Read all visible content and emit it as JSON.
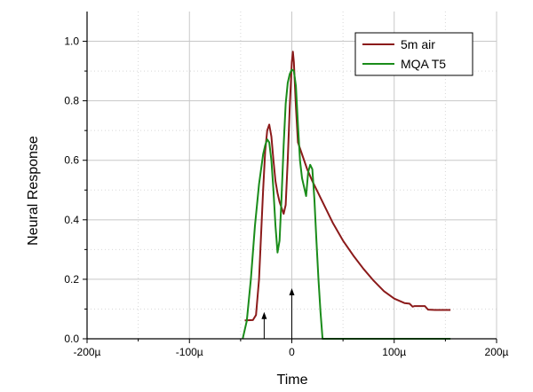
{
  "chart_data": {
    "type": "line",
    "xlabel": "Time",
    "ylabel": "Neural Response",
    "xlim": [
      -0.0002,
      0.0002
    ],
    "ylim": [
      0,
      1.1
    ],
    "x_ticks": [
      -0.0002,
      -0.0001,
      0,
      0.0001,
      0.0002
    ],
    "x_tick_labels": [
      "-200µ",
      "-100µ",
      "0",
      "100µ",
      "200µ"
    ],
    "y_ticks": [
      0,
      0.2,
      0.4,
      0.6,
      0.8,
      1.0
    ],
    "y_tick_labels": [
      "0.0",
      "0.2",
      "0.4",
      "0.6",
      "0.8",
      "1.0"
    ],
    "grid": true,
    "legend_position": "top-right",
    "series": [
      {
        "name": "5m air",
        "color": "#8b1a1a",
        "points": [
          [
            -4.6e-05,
            0.062
          ],
          [
            -3.8e-05,
            0.063
          ],
          [
            -3.5e-05,
            0.08
          ],
          [
            -3.2e-05,
            0.2
          ],
          [
            -3e-05,
            0.35
          ],
          [
            -2.8e-05,
            0.5
          ],
          [
            -2.6e-05,
            0.63
          ],
          [
            -2.4e-05,
            0.7
          ],
          [
            -2.2e-05,
            0.72
          ],
          [
            -2e-05,
            0.68
          ],
          [
            -1.8e-05,
            0.6
          ],
          [
            -1.6e-05,
            0.53
          ],
          [
            -1.4e-05,
            0.49
          ],
          [
            -1.2e-05,
            0.46
          ],
          [
            -1e-05,
            0.44
          ],
          [
            -8e-06,
            0.42
          ],
          [
            -6e-06,
            0.45
          ],
          [
            -4e-06,
            0.6
          ],
          [
            -2e-06,
            0.78
          ],
          [
            0.0,
            0.93
          ],
          [
            1e-06,
            0.965
          ],
          [
            2e-06,
            0.93
          ],
          [
            4e-06,
            0.78
          ],
          [
            6e-06,
            0.66
          ],
          [
            1e-05,
            0.62
          ],
          [
            1.5e-05,
            0.57
          ],
          [
            2e-05,
            0.53
          ],
          [
            3e-05,
            0.46
          ],
          [
            4e-05,
            0.39
          ],
          [
            5e-05,
            0.33
          ],
          [
            6e-05,
            0.28
          ],
          [
            7e-05,
            0.235
          ],
          [
            8e-05,
            0.195
          ],
          [
            9e-05,
            0.16
          ],
          [
            0.0001,
            0.135
          ],
          [
            0.00011,
            0.12
          ],
          [
            0.000115,
            0.118
          ],
          [
            0.000118,
            0.108
          ],
          [
            0.00012,
            0.11
          ],
          [
            0.00013,
            0.11
          ],
          [
            0.000133,
            0.098
          ],
          [
            0.00014,
            0.097
          ],
          [
            0.000155,
            0.097
          ]
        ]
      },
      {
        "name": "MQA T5",
        "color": "#1a8c1a",
        "points": [
          [
            -4.8e-05,
            0.0
          ],
          [
            -4.4e-05,
            0.06
          ],
          [
            -4e-05,
            0.2
          ],
          [
            -3.6e-05,
            0.38
          ],
          [
            -3.2e-05,
            0.52
          ],
          [
            -2.8e-05,
            0.62
          ],
          [
            -2.6e-05,
            0.65
          ],
          [
            -2.4e-05,
            0.67
          ],
          [
            -2.2e-05,
            0.66
          ],
          [
            -2e-05,
            0.6
          ],
          [
            -1.8e-05,
            0.5
          ],
          [
            -1.6e-05,
            0.38
          ],
          [
            -1.4e-05,
            0.29
          ],
          [
            -1.2e-05,
            0.33
          ],
          [
            -1e-05,
            0.48
          ],
          [
            -8e-06,
            0.65
          ],
          [
            -6e-06,
            0.79
          ],
          [
            -4e-06,
            0.86
          ],
          [
            -2e-06,
            0.89
          ],
          [
            0.0,
            0.905
          ],
          [
            2e-06,
            0.9
          ],
          [
            4e-06,
            0.85
          ],
          [
            6e-06,
            0.72
          ],
          [
            8e-06,
            0.6
          ],
          [
            1e-05,
            0.54
          ],
          [
            1.2e-05,
            0.51
          ],
          [
            1.4e-05,
            0.48
          ],
          [
            1.6e-05,
            0.56
          ],
          [
            1.8e-05,
            0.585
          ],
          [
            2e-05,
            0.57
          ],
          [
            2.2e-05,
            0.47
          ],
          [
            2.4e-05,
            0.33
          ],
          [
            2.6e-05,
            0.2
          ],
          [
            2.8e-05,
            0.09
          ],
          [
            3e-05,
            0.0
          ],
          [
            0.000155,
            0.0
          ]
        ]
      }
    ],
    "annotations": [
      {
        "type": "arrow",
        "x": -2.7e-05,
        "y_from": 0.0,
        "y_to": 0.09
      },
      {
        "type": "arrow",
        "x": 0.0,
        "y_from": 0.0,
        "y_to": 0.17
      }
    ]
  }
}
